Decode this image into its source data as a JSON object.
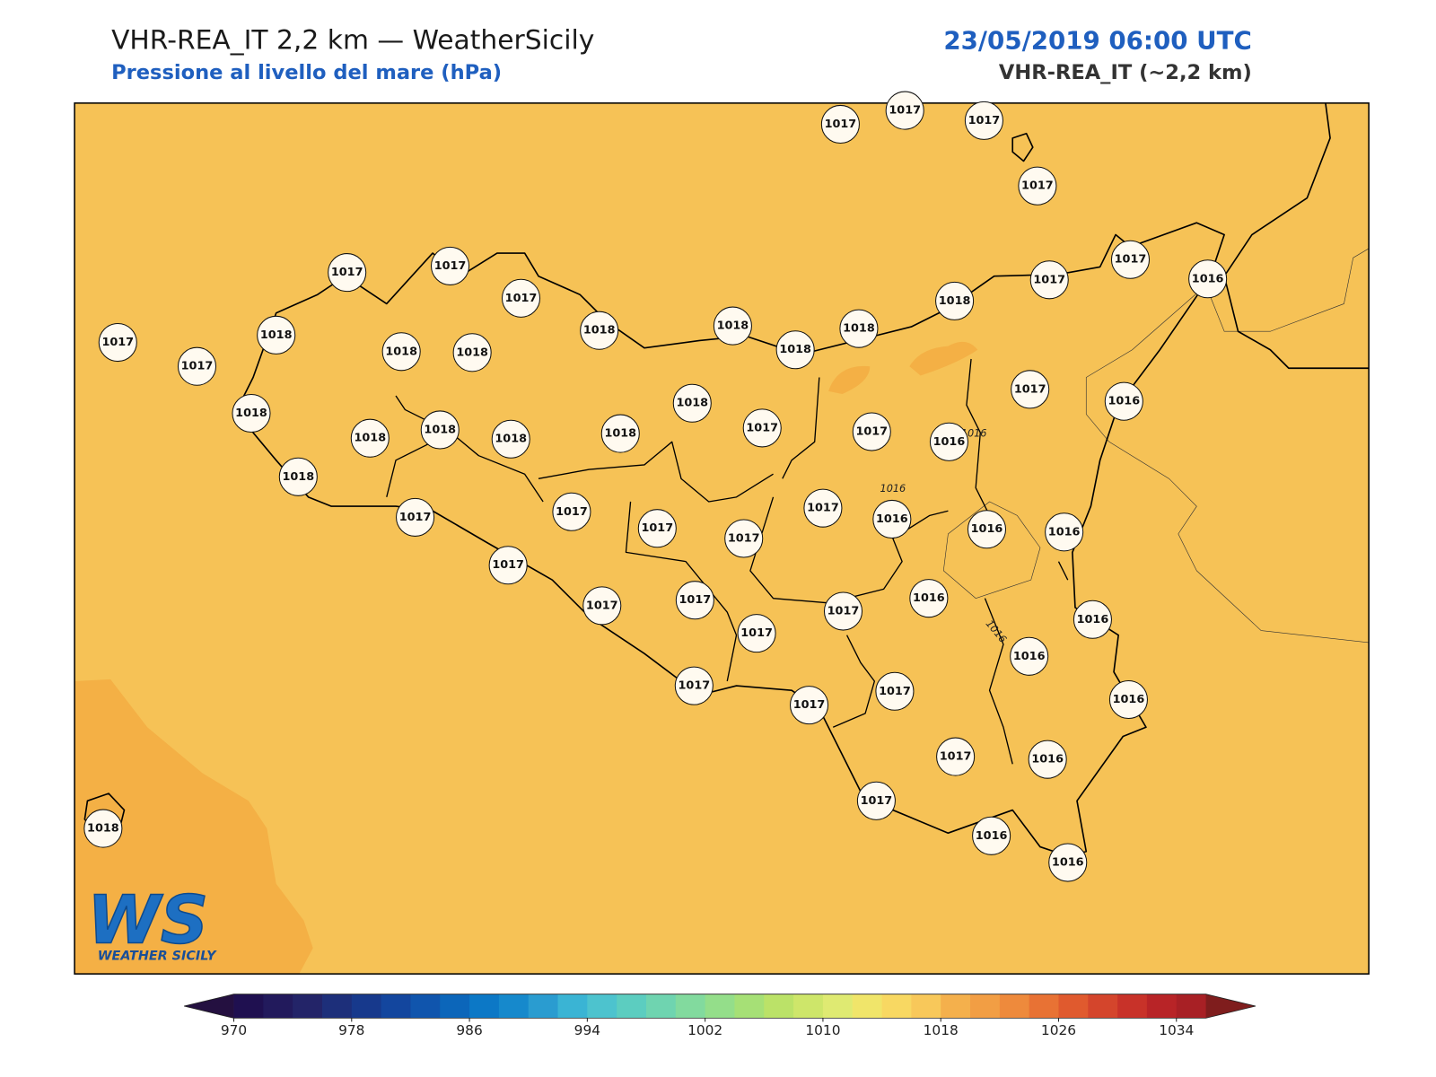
{
  "header": {
    "title": "VHR-REA_IT 2,2 km — WeatherSicily",
    "subtitle": "Pressione al livello del mare (hPa)",
    "date": "23/05/2019 06:00 UTC",
    "model": "VHR-REA_IT (~2,2 km)"
  },
  "map": {
    "stations": [
      1017,
      1017,
      1017,
      1017,
      1017,
      1017,
      1017,
      1017,
      1017,
      1018,
      1018,
      1018,
      1018,
      1018,
      1018,
      1018,
      1018,
      1017,
      1017,
      1016,
      1018,
      1018,
      1018,
      1018,
      1018,
      1018,
      1017,
      1017,
      1016,
      1017,
      1016,
      1018,
      1017,
      1017,
      1017,
      1017,
      1017,
      1016,
      1016,
      1016,
      1017,
      1017,
      1017,
      1017,
      1017,
      1016,
      1016,
      1016,
      1017,
      1017,
      1017,
      1016,
      1017,
      1016,
      1017,
      1016,
      1016,
      1018
    ],
    "contour_labels": [
      1016,
      1016,
      1016
    ]
  },
  "colorbar": {
    "range": [
      970,
      1036
    ],
    "ticks": [
      970,
      978,
      986,
      994,
      1002,
      1010,
      1018,
      1026,
      1034
    ],
    "colors": [
      "#1f1050",
      "#221a5c",
      "#232468",
      "#1d2f7a",
      "#17398c",
      "#13469e",
      "#1055ad",
      "#0c66ba",
      "#0c78c6",
      "#1689cc",
      "#2a9cd0",
      "#3ab4d4",
      "#4dc3ce",
      "#5ccdc0",
      "#6fd4b0",
      "#82da9e",
      "#94de8a",
      "#a6e076",
      "#bbe268",
      "#cee66a",
      "#dfea72",
      "#f0e56a",
      "#f8d862",
      "#f8c85a",
      "#f4b04c",
      "#f29e44",
      "#ee8a3c",
      "#e87234",
      "#e05a2e",
      "#d4452c",
      "#c83229",
      "#b82427",
      "#a82025"
    ],
    "extend_colors": [
      "#241040",
      "#7f1d1d"
    ]
  },
  "logo": {
    "mark": "WS",
    "text": "WEATHER SICILY"
  }
}
